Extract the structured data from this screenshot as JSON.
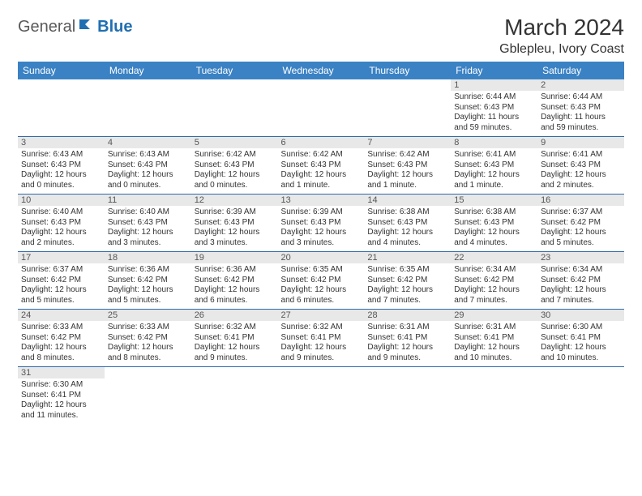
{
  "logo": {
    "general": "General",
    "blue": "Blue"
  },
  "title": "March 2024",
  "location": "Gblepleu, Ivory Coast",
  "colors": {
    "header_bg": "#3b82c4",
    "header_text": "#ffffff",
    "daynum_bg": "#e8e8e8",
    "row_border": "#2f6aa8",
    "logo_blue": "#1f6fb2",
    "logo_gray": "#5a5a5a"
  },
  "day_headers": [
    "Sunday",
    "Monday",
    "Tuesday",
    "Wednesday",
    "Thursday",
    "Friday",
    "Saturday"
  ],
  "weeks": [
    [
      null,
      null,
      null,
      null,
      null,
      {
        "n": "1",
        "sunrise": "6:44 AM",
        "sunset": "6:43 PM",
        "daylight": "11 hours and 59 minutes."
      },
      {
        "n": "2",
        "sunrise": "6:44 AM",
        "sunset": "6:43 PM",
        "daylight": "11 hours and 59 minutes."
      }
    ],
    [
      {
        "n": "3",
        "sunrise": "6:43 AM",
        "sunset": "6:43 PM",
        "daylight": "12 hours and 0 minutes."
      },
      {
        "n": "4",
        "sunrise": "6:43 AM",
        "sunset": "6:43 PM",
        "daylight": "12 hours and 0 minutes."
      },
      {
        "n": "5",
        "sunrise": "6:42 AM",
        "sunset": "6:43 PM",
        "daylight": "12 hours and 0 minutes."
      },
      {
        "n": "6",
        "sunrise": "6:42 AM",
        "sunset": "6:43 PM",
        "daylight": "12 hours and 1 minute."
      },
      {
        "n": "7",
        "sunrise": "6:42 AM",
        "sunset": "6:43 PM",
        "daylight": "12 hours and 1 minute."
      },
      {
        "n": "8",
        "sunrise": "6:41 AM",
        "sunset": "6:43 PM",
        "daylight": "12 hours and 1 minute."
      },
      {
        "n": "9",
        "sunrise": "6:41 AM",
        "sunset": "6:43 PM",
        "daylight": "12 hours and 2 minutes."
      }
    ],
    [
      {
        "n": "10",
        "sunrise": "6:40 AM",
        "sunset": "6:43 PM",
        "daylight": "12 hours and 2 minutes."
      },
      {
        "n": "11",
        "sunrise": "6:40 AM",
        "sunset": "6:43 PM",
        "daylight": "12 hours and 3 minutes."
      },
      {
        "n": "12",
        "sunrise": "6:39 AM",
        "sunset": "6:43 PM",
        "daylight": "12 hours and 3 minutes."
      },
      {
        "n": "13",
        "sunrise": "6:39 AM",
        "sunset": "6:43 PM",
        "daylight": "12 hours and 3 minutes."
      },
      {
        "n": "14",
        "sunrise": "6:38 AM",
        "sunset": "6:43 PM",
        "daylight": "12 hours and 4 minutes."
      },
      {
        "n": "15",
        "sunrise": "6:38 AM",
        "sunset": "6:43 PM",
        "daylight": "12 hours and 4 minutes."
      },
      {
        "n": "16",
        "sunrise": "6:37 AM",
        "sunset": "6:42 PM",
        "daylight": "12 hours and 5 minutes."
      }
    ],
    [
      {
        "n": "17",
        "sunrise": "6:37 AM",
        "sunset": "6:42 PM",
        "daylight": "12 hours and 5 minutes."
      },
      {
        "n": "18",
        "sunrise": "6:36 AM",
        "sunset": "6:42 PM",
        "daylight": "12 hours and 5 minutes."
      },
      {
        "n": "19",
        "sunrise": "6:36 AM",
        "sunset": "6:42 PM",
        "daylight": "12 hours and 6 minutes."
      },
      {
        "n": "20",
        "sunrise": "6:35 AM",
        "sunset": "6:42 PM",
        "daylight": "12 hours and 6 minutes."
      },
      {
        "n": "21",
        "sunrise": "6:35 AM",
        "sunset": "6:42 PM",
        "daylight": "12 hours and 7 minutes."
      },
      {
        "n": "22",
        "sunrise": "6:34 AM",
        "sunset": "6:42 PM",
        "daylight": "12 hours and 7 minutes."
      },
      {
        "n": "23",
        "sunrise": "6:34 AM",
        "sunset": "6:42 PM",
        "daylight": "12 hours and 7 minutes."
      }
    ],
    [
      {
        "n": "24",
        "sunrise": "6:33 AM",
        "sunset": "6:42 PM",
        "daylight": "12 hours and 8 minutes."
      },
      {
        "n": "25",
        "sunrise": "6:33 AM",
        "sunset": "6:42 PM",
        "daylight": "12 hours and 8 minutes."
      },
      {
        "n": "26",
        "sunrise": "6:32 AM",
        "sunset": "6:41 PM",
        "daylight": "12 hours and 9 minutes."
      },
      {
        "n": "27",
        "sunrise": "6:32 AM",
        "sunset": "6:41 PM",
        "daylight": "12 hours and 9 minutes."
      },
      {
        "n": "28",
        "sunrise": "6:31 AM",
        "sunset": "6:41 PM",
        "daylight": "12 hours and 9 minutes."
      },
      {
        "n": "29",
        "sunrise": "6:31 AM",
        "sunset": "6:41 PM",
        "daylight": "12 hours and 10 minutes."
      },
      {
        "n": "30",
        "sunrise": "6:30 AM",
        "sunset": "6:41 PM",
        "daylight": "12 hours and 10 minutes."
      }
    ],
    [
      {
        "n": "31",
        "sunrise": "6:30 AM",
        "sunset": "6:41 PM",
        "daylight": "12 hours and 11 minutes."
      },
      null,
      null,
      null,
      null,
      null,
      null
    ]
  ],
  "labels": {
    "sunrise": "Sunrise: ",
    "sunset": "Sunset: ",
    "daylight": "Daylight: "
  }
}
